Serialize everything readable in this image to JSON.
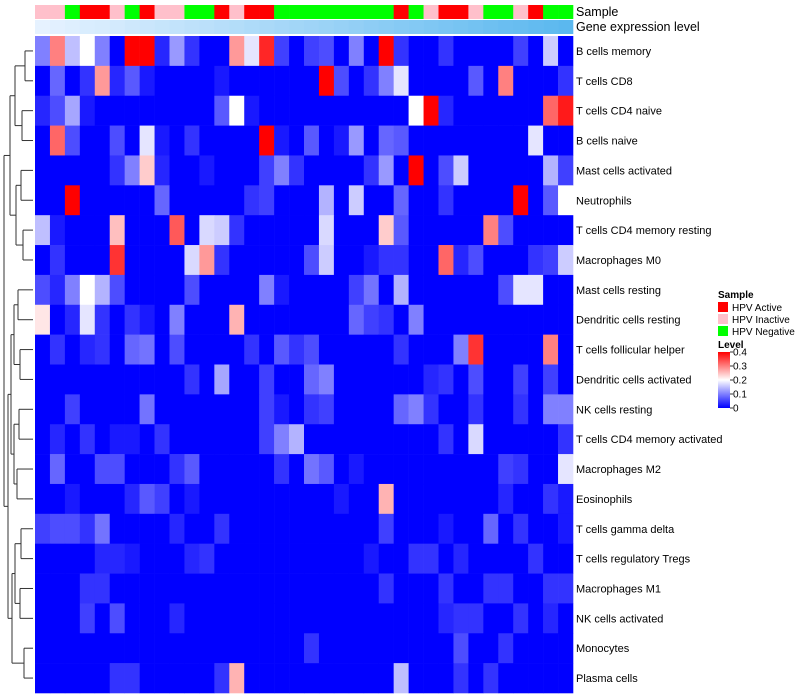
{
  "chart_data": {
    "type": "heatmap",
    "title": "",
    "annotation_labels": {
      "sample": "Sample",
      "expression": "Gene expression level"
    },
    "rows": [
      "B cells memory",
      "T cells CD8",
      "T cells CD4 naive",
      "B cells naive",
      "Mast cells activated",
      "Neutrophils",
      "T cells CD4 memory resting",
      "Macrophages M0",
      "Mast cells resting",
      "Dendritic cells resting",
      "T cells follicular helper",
      "Dendritic cells activated",
      "NK cells resting",
      "T cells CD4 memory activated",
      "Macrophages M2",
      "Eosinophils",
      "T cells gamma delta",
      "T cells regulatory  Tregs",
      "Macrophages M1",
      "NK cells activated",
      "Monocytes",
      "Plasma cells"
    ],
    "n_columns": 36,
    "sample_groups": [
      "I",
      "I",
      "N",
      "A",
      "A",
      "I",
      "N",
      "A",
      "I",
      "I",
      "N",
      "N",
      "A",
      "I",
      "A",
      "A",
      "N",
      "N",
      "N",
      "N",
      "N",
      "N",
      "N",
      "N",
      "A",
      "N",
      "I",
      "A",
      "A",
      "I",
      "N",
      "N",
      "I",
      "A",
      "N",
      "N"
    ],
    "expression_levels": [
      0.0,
      0.03,
      0.06,
      0.09,
      0.11,
      0.14,
      0.17,
      0.2,
      0.23,
      0.26,
      0.29,
      0.31,
      0.34,
      0.37,
      0.4,
      0.43,
      0.46,
      0.49,
      0.51,
      0.54,
      0.57,
      0.6,
      0.63,
      0.66,
      0.69,
      0.71,
      0.74,
      0.77,
      0.8,
      0.83,
      0.86,
      0.89,
      0.91,
      0.94,
      0.97,
      1.0
    ],
    "values": [
      [
        0.1,
        0.3,
        0.15,
        0.2,
        0.1,
        0.0,
        0.4,
        0.4,
        0.03,
        0.12,
        0.04,
        0.0,
        0.0,
        0.28,
        0.18,
        0.37,
        0.05,
        0.0,
        0.05,
        0.06,
        0.0,
        0.1,
        0.0,
        0.4,
        0.04,
        0.0,
        0.0,
        0.04,
        0.0,
        0.0,
        0.0,
        0.0,
        0.05,
        0.0,
        0.16,
        0.0
      ],
      [
        0.0,
        0.08,
        0.0,
        0.04,
        0.28,
        0.03,
        0.07,
        0.02,
        0.0,
        0.0,
        0.0,
        0.0,
        0.02,
        0.0,
        0.0,
        0.0,
        0.0,
        0.0,
        0.0,
        0.4,
        0.06,
        0.0,
        0.04,
        0.1,
        0.18,
        0.0,
        0.0,
        0.0,
        0.0,
        0.07,
        0.0,
        0.3,
        0.0,
        0.0,
        0.0,
        0.04
      ],
      [
        0.03,
        0.06,
        0.13,
        0.02,
        0.0,
        0.0,
        0.0,
        0.0,
        0.0,
        0.0,
        0.0,
        0.0,
        0.07,
        0.2,
        0.02,
        0.0,
        0.0,
        0.0,
        0.0,
        0.0,
        0.0,
        0.0,
        0.0,
        0.0,
        0.0,
        0.2,
        0.4,
        0.03,
        0.0,
        0.0,
        0.0,
        0.0,
        0.0,
        0.0,
        0.32,
        0.38
      ],
      [
        0.0,
        0.32,
        0.06,
        0.0,
        0.0,
        0.06,
        0.0,
        0.18,
        0.02,
        0.0,
        0.04,
        0.0,
        0.0,
        0.0,
        0.0,
        0.4,
        0.02,
        0.0,
        0.07,
        0.0,
        0.02,
        0.12,
        0.0,
        0.08,
        0.07,
        0.0,
        0.0,
        0.0,
        0.0,
        0.0,
        0.0,
        0.0,
        0.0,
        0.18,
        0.0,
        0.0
      ],
      [
        0.0,
        0.0,
        0.0,
        0.0,
        0.0,
        0.04,
        0.1,
        0.24,
        0.03,
        0.0,
        0.0,
        0.02,
        0.0,
        0.0,
        0.0,
        0.05,
        0.1,
        0.04,
        0.0,
        0.0,
        0.0,
        0.0,
        0.04,
        0.12,
        0.0,
        0.4,
        0.0,
        0.06,
        0.16,
        0.0,
        0.0,
        0.0,
        0.0,
        0.0,
        0.14,
        0.05
      ],
      [
        0.0,
        0.0,
        0.4,
        0.0,
        0.0,
        0.0,
        0.0,
        0.0,
        0.08,
        0.0,
        0.0,
        0.0,
        0.0,
        0.0,
        0.04,
        0.05,
        0.0,
        0.0,
        0.0,
        0.14,
        0.0,
        0.16,
        0.0,
        0.0,
        0.08,
        0.0,
        0.0,
        0.04,
        0.0,
        0.0,
        0.0,
        0.0,
        0.4,
        0.0,
        0.07,
        0.2
      ],
      [
        0.15,
        0.02,
        0.0,
        0.0,
        0.0,
        0.25,
        0.0,
        0.0,
        0.0,
        0.33,
        0.0,
        0.17,
        0.16,
        0.04,
        0.0,
        0.0,
        0.0,
        0.0,
        0.0,
        0.17,
        0.0,
        0.0,
        0.0,
        0.24,
        0.07,
        0.0,
        0.0,
        0.0,
        0.0,
        0.0,
        0.3,
        0.06,
        0.0,
        0.0,
        0.0,
        0.0
      ],
      [
        0.0,
        0.04,
        0.0,
        0.0,
        0.0,
        0.36,
        0.0,
        0.0,
        0.0,
        0.0,
        0.17,
        0.28,
        0.04,
        0.0,
        0.0,
        0.0,
        0.0,
        0.0,
        0.06,
        0.16,
        0.0,
        0.0,
        0.02,
        0.04,
        0.04,
        0.0,
        0.0,
        0.32,
        0.03,
        0.06,
        0.0,
        0.0,
        0.0,
        0.04,
        0.05,
        0.16
      ],
      [
        0.06,
        0.03,
        0.1,
        0.2,
        0.14,
        0.06,
        0.0,
        0.0,
        0.0,
        0.0,
        0.06,
        0.0,
        0.0,
        0.0,
        0.0,
        0.1,
        0.02,
        0.0,
        0.0,
        0.0,
        0.0,
        0.05,
        0.09,
        0.0,
        0.14,
        0.0,
        0.0,
        0.0,
        0.0,
        0.0,
        0.0,
        0.06,
        0.18,
        0.18,
        0.0,
        0.0
      ],
      [
        0.22,
        0.0,
        0.03,
        0.18,
        0.04,
        0.0,
        0.04,
        0.02,
        0.0,
        0.1,
        0.0,
        0.0,
        0.0,
        0.26,
        0.0,
        0.0,
        0.0,
        0.0,
        0.0,
        0.0,
        0.0,
        0.08,
        0.05,
        0.04,
        0.0,
        0.1,
        0.0,
        0.0,
        0.0,
        0.0,
        0.0,
        0.0,
        0.0,
        0.0,
        0.0,
        0.0
      ],
      [
        0.0,
        0.04,
        0.0,
        0.03,
        0.04,
        0.0,
        0.08,
        0.09,
        0.0,
        0.06,
        0.0,
        0.0,
        0.0,
        0.0,
        0.04,
        0.0,
        0.07,
        0.04,
        0.06,
        0.0,
        0.0,
        0.0,
        0.0,
        0.0,
        0.04,
        0.0,
        0.0,
        0.0,
        0.1,
        0.36,
        0.0,
        0.0,
        0.0,
        0.0,
        0.3,
        0.0
      ],
      [
        0.0,
        0.0,
        0.0,
        0.0,
        0.0,
        0.0,
        0.0,
        0.0,
        0.0,
        0.0,
        0.04,
        0.0,
        0.13,
        0.0,
        0.0,
        0.05,
        0.0,
        0.0,
        0.08,
        0.1,
        0.0,
        0.0,
        0.0,
        0.0,
        0.0,
        0.0,
        0.03,
        0.04,
        0.0,
        0.06,
        0.0,
        0.0,
        0.05,
        0.0,
        0.05,
        0.0
      ],
      [
        0.0,
        0.0,
        0.05,
        0.0,
        0.0,
        0.0,
        0.0,
        0.09,
        0.0,
        0.0,
        0.0,
        0.0,
        0.0,
        0.0,
        0.0,
        0.05,
        0.02,
        0.0,
        0.04,
        0.05,
        0.0,
        0.0,
        0.0,
        0.0,
        0.08,
        0.1,
        0.04,
        0.0,
        0.0,
        0.04,
        0.0,
        0.0,
        0.04,
        0.0,
        0.1,
        0.1
      ],
      [
        0.0,
        0.03,
        0.0,
        0.04,
        0.0,
        0.02,
        0.02,
        0.0,
        0.04,
        0.0,
        0.0,
        0.0,
        0.0,
        0.0,
        0.0,
        0.05,
        0.1,
        0.14,
        0.0,
        0.0,
        0.0,
        0.0,
        0.0,
        0.0,
        0.0,
        0.0,
        0.0,
        0.04,
        0.0,
        0.17,
        0.0,
        0.0,
        0.0,
        0.0,
        0.0,
        0.04
      ],
      [
        0.0,
        0.08,
        0.0,
        0.0,
        0.06,
        0.06,
        0.0,
        0.0,
        0.0,
        0.04,
        0.07,
        0.0,
        0.0,
        0.0,
        0.0,
        0.0,
        0.04,
        0.0,
        0.09,
        0.07,
        0.0,
        0.02,
        0.0,
        0.0,
        0.0,
        0.0,
        0.0,
        0.0,
        0.0,
        0.0,
        0.0,
        0.05,
        0.04,
        0.0,
        0.0,
        0.18
      ],
      [
        0.0,
        0.0,
        0.02,
        0.0,
        0.0,
        0.0,
        0.03,
        0.07,
        0.05,
        0.0,
        0.02,
        0.0,
        0.0,
        0.0,
        0.0,
        0.0,
        0.0,
        0.0,
        0.0,
        0.0,
        0.02,
        0.0,
        0.0,
        0.26,
        0.0,
        0.0,
        0.0,
        0.0,
        0.0,
        0.0,
        0.0,
        0.03,
        0.0,
        0.0,
        0.04,
        0.02
      ],
      [
        0.05,
        0.06,
        0.06,
        0.04,
        0.09,
        0.0,
        0.0,
        0.0,
        0.0,
        0.03,
        0.0,
        0.0,
        0.04,
        0.0,
        0.0,
        0.0,
        0.0,
        0.0,
        0.0,
        0.0,
        0.0,
        0.0,
        0.0,
        0.05,
        0.0,
        0.0,
        0.0,
        0.02,
        0.0,
        0.0,
        0.08,
        0.0,
        0.04,
        0.0,
        0.0,
        0.02
      ],
      [
        0.0,
        0.0,
        0.0,
        0.0,
        0.03,
        0.03,
        0.02,
        0.0,
        0.0,
        0.0,
        0.03,
        0.04,
        0.0,
        0.0,
        0.0,
        0.0,
        0.0,
        0.0,
        0.0,
        0.0,
        0.0,
        0.0,
        0.02,
        0.0,
        0.0,
        0.04,
        0.04,
        0.0,
        0.03,
        0.0,
        0.0,
        0.0,
        0.0,
        0.04,
        0.0,
        0.0
      ],
      [
        0.0,
        0.0,
        0.0,
        0.04,
        0.04,
        0.0,
        0.0,
        0.0,
        0.0,
        0.0,
        0.0,
        0.0,
        0.0,
        0.0,
        0.0,
        0.0,
        0.0,
        0.0,
        0.0,
        0.0,
        0.0,
        0.0,
        0.0,
        0.04,
        0.0,
        0.0,
        0.0,
        0.04,
        0.0,
        0.0,
        0.04,
        0.04,
        0.0,
        0.0,
        0.04,
        0.04
      ],
      [
        0.0,
        0.0,
        0.0,
        0.05,
        0.0,
        0.06,
        0.0,
        0.0,
        0.0,
        0.03,
        0.0,
        0.0,
        0.0,
        0.0,
        0.0,
        0.0,
        0.0,
        0.0,
        0.0,
        0.0,
        0.0,
        0.0,
        0.0,
        0.0,
        0.0,
        0.0,
        0.0,
        0.03,
        0.04,
        0.04,
        0.0,
        0.0,
        0.04,
        0.0,
        0.03,
        0.0
      ],
      [
        0.0,
        0.0,
        0.0,
        0.0,
        0.0,
        0.0,
        0.0,
        0.0,
        0.0,
        0.0,
        0.0,
        0.0,
        0.0,
        0.0,
        0.0,
        0.0,
        0.0,
        0.0,
        0.04,
        0.0,
        0.0,
        0.0,
        0.0,
        0.0,
        0.0,
        0.0,
        0.0,
        0.0,
        0.06,
        0.0,
        0.0,
        0.04,
        0.0,
        0.0,
        0.0,
        0.0
      ],
      [
        0.0,
        0.0,
        0.0,
        0.0,
        0.0,
        0.04,
        0.04,
        0.0,
        0.0,
        0.0,
        0.0,
        0.0,
        0.04,
        0.26,
        0.0,
        0.0,
        0.0,
        0.0,
        0.0,
        0.0,
        0.0,
        0.0,
        0.0,
        0.0,
        0.15,
        0.0,
        0.0,
        0.0,
        0.04,
        0.0,
        0.04,
        0.0,
        0.0,
        0.0,
        0.0,
        0.0
      ]
    ],
    "color_scale": {
      "low": "#0000ff",
      "mid": "#ffffff",
      "high": "#ff0000",
      "min": 0,
      "max": 0.4
    },
    "sample_colors": {
      "A": "#ff0000",
      "I": "#ffc0cb",
      "N": "#00ff00"
    },
    "expression_colors": {
      "low": "#e6f2ff",
      "high": "#5bb8ef"
    },
    "legend": {
      "sample_title": "Sample",
      "sample_items": [
        {
          "key": "A",
          "label": "HPV Active"
        },
        {
          "key": "I",
          "label": "HPV Inactive"
        },
        {
          "key": "N",
          "label": "HPV Negative"
        }
      ],
      "level_title": "Level",
      "level_ticks": [
        "0.4",
        "0.3",
        "0.2",
        "0.1",
        "0"
      ],
      "level_tick_values": [
        0.4,
        0.3,
        0.2,
        0.1,
        0
      ]
    },
    "row_dendrogram": true
  }
}
